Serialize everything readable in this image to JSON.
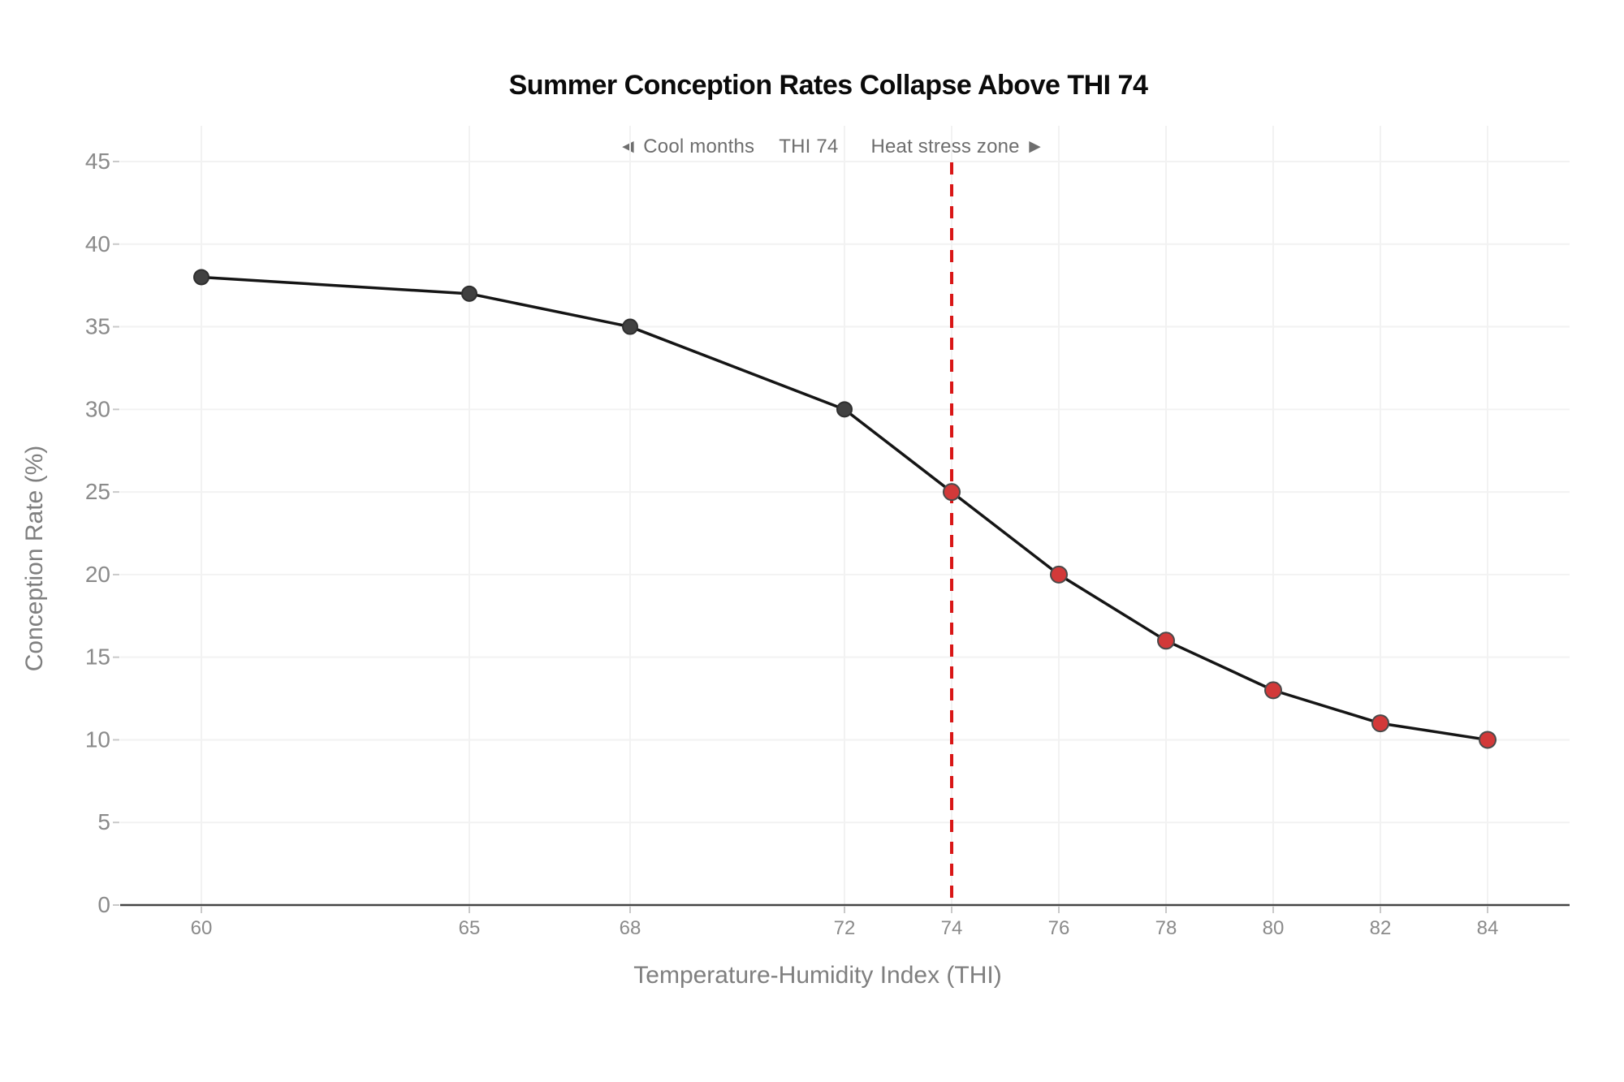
{
  "title": "Summer Conception Rates Collapse Above THI 74",
  "annotations": {
    "cool_label": "◄ Cool months",
    "threshold_label": "THI 74",
    "heat_label": "Heat stress zone ►"
  },
  "chart_data": {
    "type": "line",
    "title": "Summer Conception Rates Collapse Above THI 74",
    "xlabel": "Temperature-Humidity Index (THI)",
    "ylabel": "Conception Rate (%)",
    "x": [
      60,
      65,
      68,
      72,
      74,
      76,
      78,
      80,
      82,
      84
    ],
    "y": [
      38,
      37,
      35,
      30,
      25,
      20,
      16,
      13,
      11,
      10
    ],
    "point_zone": [
      "cool",
      "cool",
      "cool",
      "cool",
      "heat",
      "heat",
      "heat",
      "heat",
      "heat",
      "heat"
    ],
    "x_ticks": [
      60,
      65,
      68,
      72,
      74,
      76,
      78,
      80,
      82,
      84
    ],
    "y_ticks": [
      0,
      5,
      10,
      15,
      20,
      25,
      30,
      35,
      40,
      45
    ],
    "xlim": [
      58.5,
      85.6
    ],
    "ylim": [
      0,
      45
    ],
    "threshold_x": 74,
    "grid": true,
    "legend": "none",
    "colors": {
      "line": "#151515",
      "cool_point_fill": "#414141",
      "cool_point_stroke": "#2f2f2f",
      "heat_point_fill": "#d23939",
      "heat_point_stroke": "#4a4a4a",
      "threshold_line": "#d91616",
      "gridline": "#f2f2f2",
      "axis": "#454545",
      "tick_mark": "#c9c9c9",
      "tick_label": "#8a8a8a"
    }
  }
}
